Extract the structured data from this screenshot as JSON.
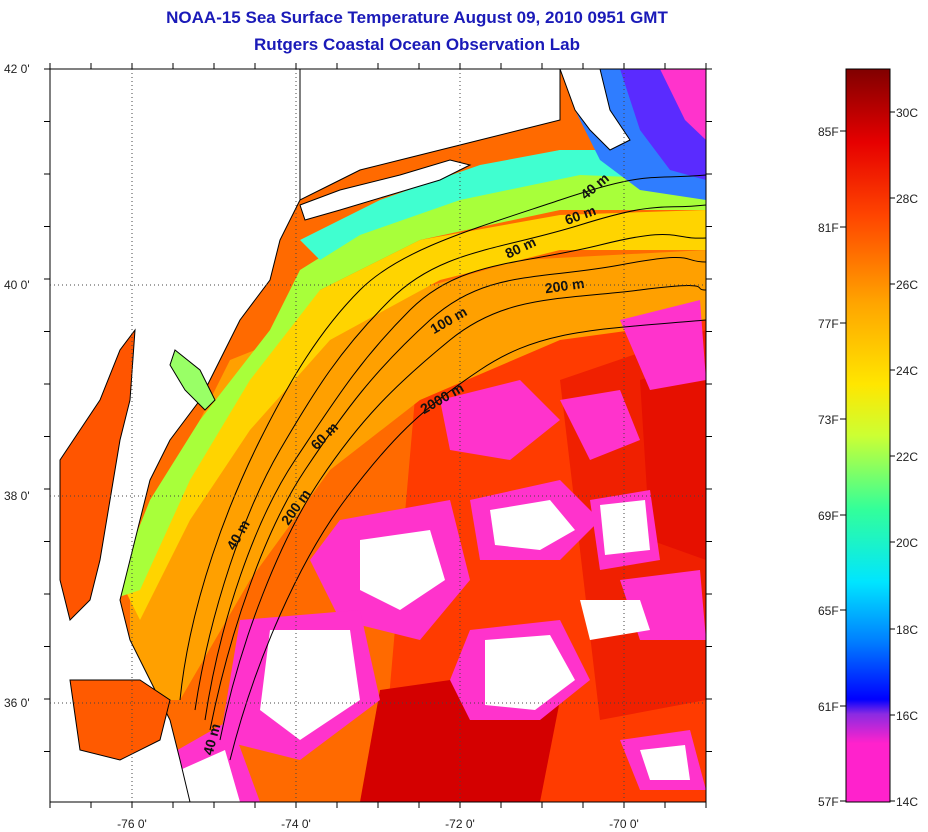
{
  "title_line1": "NOAA-15 Sea Surface Temperature August 09, 2010 0951 GMT",
  "title_line2": "Rutgers Coastal Ocean Observation Lab",
  "lat_labels": [
    "42 0'",
    "40 0'",
    "38 0'",
    "36 0'"
  ],
  "lon_labels": [
    "-76 0'",
    "-74 0'",
    "-72 0'",
    "-70 0'"
  ],
  "contour_labels": [
    "40 m",
    "60 m",
    "80 m",
    "200 m",
    "100 m",
    "2000 m",
    "60 m",
    "200 m",
    "40 m",
    "40 m"
  ],
  "colorbar": {
    "fahrenheit_labels": [
      "85F",
      "81F",
      "77F",
      "73F",
      "69F",
      "65F",
      "61F",
      "57F"
    ],
    "celsius_labels": [
      "30C",
      "28C",
      "26C",
      "24C",
      "22C",
      "20C",
      "18C",
      "16C",
      "14C"
    ],
    "stops": [
      "#ff22cc",
      "#8a2be2",
      "#0000ff",
      "#0080ff",
      "#00e5ff",
      "#33ff99",
      "#ccff33",
      "#ffe600",
      "#ffa500",
      "#ff4500",
      "#e60000",
      "#800000"
    ]
  },
  "colors": {
    "land": "#ffffff",
    "cloud": "#ffffff",
    "coastline": "#000000",
    "title": "#1a1ab8"
  }
}
